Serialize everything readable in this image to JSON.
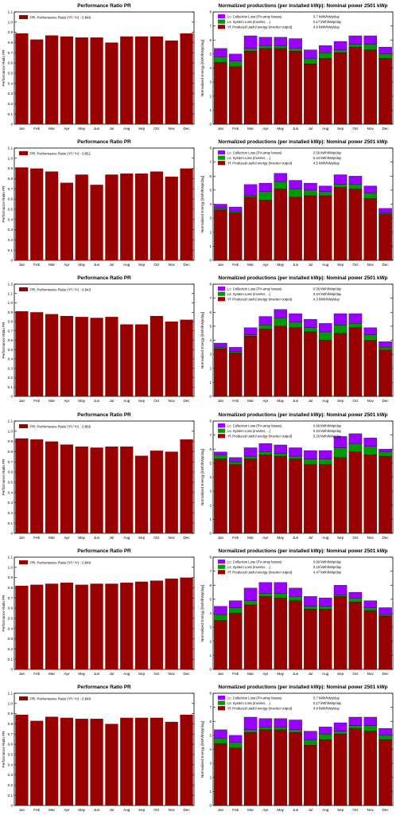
{
  "months": [
    "Jan",
    "Feb",
    "Mar",
    "Apr",
    "May",
    "Jun",
    "Jul",
    "Aug",
    "Sep",
    "Oct",
    "Nov",
    "Dec"
  ],
  "colors": {
    "pr_bar": "#990000",
    "yf": "#990000",
    "ls": "#009900",
    "lc": "#9900ff"
  },
  "chart_data": [
    {
      "type": "bar",
      "title": "Performance Ratio PR",
      "ylabel": "Performance Ratio PR",
      "legend": "PR: Performance Ratio (Yf / Yr) :  0.849",
      "ylim": [
        0,
        1.1
      ],
      "yticks": [
        "0",
        "0.1",
        "0.2",
        "0.3",
        "0.4",
        "0.5",
        "0.6",
        "0.7",
        "0.8",
        "0.9",
        "1.0",
        "1.1"
      ],
      "categories": [
        "Jan",
        "Feb",
        "Mar",
        "Apr",
        "May",
        "Jun",
        "Jul",
        "Aug",
        "Sep",
        "Oct",
        "Nov",
        "Dec"
      ],
      "values": [
        0.89,
        0.83,
        0.87,
        0.86,
        0.85,
        0.85,
        0.8,
        0.86,
        0.86,
        0.86,
        0.82,
        0.89
      ]
    },
    {
      "type": "bar",
      "stacked": true,
      "title": "Normalized productions (per installed kWp):  Nominal power 2501 kWp",
      "ylabel": "Normalized Energy [kWh/kWp/day]",
      "ylim": [
        0,
        8
      ],
      "yticks": [
        "0",
        "1",
        "2",
        "3",
        "4",
        "5",
        "6",
        "7",
        "8"
      ],
      "legend": [
        {
          "key": "lc",
          "label": "Lc: Collection Loss (PV-array losses)",
          "value": "0.7 kWh/kWp/day"
        },
        {
          "key": "ls",
          "label": "Ls: System Loss  (inverter, ...)",
          "value": "0.17 kWh/kWp/day"
        },
        {
          "key": "yf",
          "label": "Yf: Produced useful energy  (inverter output)",
          "value": "4.9 kWh/kWp/day"
        }
      ],
      "categories": [
        "Jan",
        "Feb",
        "Mar",
        "Apr",
        "May",
        "Jun",
        "Jul",
        "Aug",
        "Sep",
        "Oct",
        "Nov",
        "Dec"
      ],
      "series": [
        {
          "key": "yf",
          "name": "Yf",
          "values": [
            4.4,
            4.1,
            5.2,
            5.4,
            5.4,
            5.2,
            4.3,
            4.7,
            5.1,
            5.5,
            5.3,
            4.7
          ]
        },
        {
          "key": "ls",
          "name": "Ls",
          "values": [
            0.4,
            0.4,
            0.2,
            0.2,
            0.2,
            0.2,
            0.4,
            0.4,
            0.2,
            0.2,
            0.4,
            0.3
          ]
        },
        {
          "key": "lc",
          "name": "Lc",
          "values": [
            0.6,
            0.5,
            0.9,
            0.6,
            0.6,
            0.7,
            0.6,
            0.5,
            0.6,
            0.6,
            0.6,
            0.5
          ]
        }
      ]
    },
    {
      "type": "bar",
      "title": "Performance Ratio PR",
      "ylabel": "Performance Ratio PR",
      "legend": "PR: Performance Ratio (Yf / Yr) :  0.851",
      "ylim": [
        0,
        1.1
      ],
      "yticks": [
        "0",
        "0.1",
        "0.2",
        "0.3",
        "0.4",
        "0.5",
        "0.6",
        "0.7",
        "0.8",
        "0.9",
        "1.0",
        "1.1"
      ],
      "categories": [
        "Jan",
        "Feb",
        "Mar",
        "Apr",
        "May",
        "Jun",
        "Jul",
        "Aug",
        "Sep",
        "Oct",
        "Nov",
        "Dec"
      ],
      "values": [
        0.91,
        0.9,
        0.87,
        0.76,
        0.84,
        0.74,
        0.84,
        0.85,
        0.85,
        0.87,
        0.82,
        0.9
      ]
    },
    {
      "type": "bar",
      "stacked": true,
      "title": "Normalized productions (per installed kWp):  Nominal power 2501 kWp",
      "ylabel": "Normalized Energy [kWh/kWp/day]",
      "ylim": [
        0,
        8
      ],
      "yticks": [
        "0",
        "1",
        "2",
        "3",
        "4",
        "5",
        "6",
        "7",
        "8"
      ],
      "legend": [
        {
          "key": "lc",
          "label": "Lc: Collection Loss (PV-array losses)",
          "value": "0.59 kWh/kWp/day"
        },
        {
          "key": "ls",
          "label": "Ls: System Loss  (inverter, ...)",
          "value": "0.24 kWh/kWp/day"
        },
        {
          "key": "yf",
          "label": "Yf: Produced useful energy  (inverter output)",
          "value": "4.5 kWh/kWp/day"
        }
      ],
      "categories": [
        "Jan",
        "Feb",
        "Mar",
        "Apr",
        "May",
        "Jun",
        "Jul",
        "Aug",
        "Sep",
        "Oct",
        "Nov",
        "Dec"
      ],
      "series": [
        {
          "key": "yf",
          "name": "Yf",
          "values": [
            3.6,
            3.4,
            4.5,
            4.3,
            5.1,
            4.5,
            4.6,
            4.6,
            5.2,
            5.1,
            4.4,
            3.3
          ]
        },
        {
          "key": "ls",
          "name": "Ls",
          "values": [
            0.1,
            0.1,
            0.1,
            0.6,
            0.5,
            0.6,
            0.4,
            0.3,
            0.2,
            0.3,
            0.4,
            0.1
          ]
        },
        {
          "key": "lc",
          "name": "Lc",
          "values": [
            0.3,
            0.3,
            0.8,
            0.6,
            0.6,
            0.6,
            0.5,
            0.4,
            0.7,
            0.6,
            0.5,
            0.3
          ]
        }
      ]
    },
    {
      "type": "bar",
      "title": "Performance Ratio PR",
      "ylabel": "Performance Ratio PR",
      "legend": "PR: Performance Ratio (Yf / Yr) :  0.843",
      "ylim": [
        0,
        1.2
      ],
      "yticks": [
        "0",
        "0.1",
        "0.2",
        "0.3",
        "0.4",
        "0.5",
        "0.6",
        "0.7",
        "0.8",
        "0.9",
        "1.0",
        "1.1",
        "1.2"
      ],
      "categories": [
        "Jan",
        "Feb",
        "Mar",
        "Apr",
        "May",
        "Jun",
        "Jul",
        "Aug",
        "Sep",
        "Oct",
        "Nov",
        "Dec"
      ],
      "values": [
        0.91,
        0.9,
        0.88,
        0.86,
        0.85,
        0.84,
        0.85,
        0.77,
        0.77,
        0.86,
        0.8,
        0.82
      ]
    },
    {
      "type": "bar",
      "stacked": true,
      "title": "Normalized productions (per installed kWp):  Nominal power 2501 kWp",
      "ylabel": "Normalized Energy [kWh/kWp/day]",
      "ylim": [
        0,
        8
      ],
      "yticks": [
        "0",
        "1",
        "2",
        "3",
        "4",
        "5",
        "6",
        "7",
        "8"
      ],
      "legend": [
        {
          "key": "lc",
          "label": "Lc: Collection Loss (PV-array losses)",
          "value": "0.56 kWh/kWp/day"
        },
        {
          "key": "ls",
          "label": "Ls: System Loss  (inverter, ...)",
          "value": "0.24 kWh/kWp/day"
        },
        {
          "key": "yf",
          "label": "Yf: Produced useful energy  (inverter output)",
          "value": "4.3 kWh/kWp/day"
        }
      ],
      "categories": [
        "Jan",
        "Feb",
        "Mar",
        "Apr",
        "May",
        "Jun",
        "Jul",
        "Aug",
        "Sep",
        "Oct",
        "Nov",
        "Dec"
      ],
      "series": [
        {
          "key": "yf",
          "name": "Yf",
          "values": [
            3.4,
            3.1,
            4.3,
            4.8,
            5.0,
            4.9,
            4.6,
            4.0,
            4.5,
            4.9,
            4.0,
            3.3
          ]
        },
        {
          "key": "ls",
          "name": "Ls",
          "values": [
            0.1,
            0.1,
            0.1,
            0.3,
            0.6,
            0.4,
            0.3,
            0.6,
            0.6,
            0.3,
            0.4,
            0.2
          ]
        },
        {
          "key": "lc",
          "name": "Lc",
          "values": [
            0.3,
            0.3,
            0.5,
            0.6,
            0.6,
            0.6,
            0.6,
            0.6,
            0.8,
            0.7,
            0.5,
            0.4
          ]
        }
      ]
    },
    {
      "type": "bar",
      "title": "Performance Ratio PR",
      "ylabel": "Performance Ratio PR",
      "legend": "PR: Performance Ratio (Yf / Yr) :  0.856",
      "ylim": [
        0,
        1.1
      ],
      "yticks": [
        "0",
        "0.1",
        "0.2",
        "0.3",
        "0.4",
        "0.5",
        "0.6",
        "0.7",
        "0.8",
        "0.9",
        "1.0",
        "1.1"
      ],
      "categories": [
        "Jan",
        "Feb",
        "Mar",
        "Apr",
        "May",
        "Jun",
        "Jul",
        "Aug",
        "Sep",
        "Oct",
        "Nov",
        "Dec"
      ],
      "values": [
        0.93,
        0.92,
        0.9,
        0.87,
        0.85,
        0.84,
        0.85,
        0.85,
        0.76,
        0.81,
        0.8,
        0.92
      ]
    },
    {
      "type": "bar",
      "stacked": true,
      "title": "Normalized productions (per installed kWp):  Nominal power 2501 kWp",
      "ylabel": "Normalized Energy [kWh/kWp/day]",
      "ylim": [
        0,
        8
      ],
      "yticks": [
        "0",
        "1",
        "2",
        "3",
        "4",
        "5",
        "6",
        "7",
        "8"
      ],
      "legend": [
        {
          "key": "lc",
          "label": "Lc: Collection Loss (PV-array losses)",
          "value": "0.66 kWh/kWp/day"
        },
        {
          "key": "ls",
          "label": "Ls: System Loss  (inverter, ...)",
          "value": "0.23 kWh/kWp/day"
        },
        {
          "key": "yf",
          "label": "Yf: Produced useful energy  (inverter output)",
          "value": "5.26 kWh/kWp/day"
        }
      ],
      "categories": [
        "Jan",
        "Feb",
        "Mar",
        "Apr",
        "May",
        "Jun",
        "Jul",
        "Aug",
        "Sep",
        "Oct",
        "Nov",
        "Dec"
      ],
      "series": [
        {
          "key": "yf",
          "name": "Yf",
          "values": [
            5.3,
            4.9,
            5.3,
            5.6,
            5.5,
            5.3,
            4.9,
            4.9,
            5.4,
            5.8,
            5.6,
            5.5
          ]
        },
        {
          "key": "ls",
          "name": "Ls",
          "values": [
            0.3,
            0.2,
            0.2,
            0.2,
            0.2,
            0.2,
            0.4,
            0.4,
            0.7,
            0.6,
            0.6,
            0.3
          ]
        },
        {
          "key": "lc",
          "name": "Lc",
          "values": [
            0.2,
            0.3,
            0.6,
            0.6,
            0.6,
            0.6,
            0.6,
            0.6,
            0.8,
            0.7,
            0.6,
            0.2
          ]
        }
      ]
    },
    {
      "type": "bar",
      "title": "Performance Ratio PR",
      "ylabel": "Performance Ratio PR",
      "legend": "PR: Performance Ratio (Yf / Yr) :  0.849",
      "ylim": [
        0,
        1.1
      ],
      "yticks": [
        "0",
        "0.1",
        "0.2",
        "0.3",
        "0.4",
        "0.5",
        "0.6",
        "0.7",
        "0.8",
        "0.9",
        "1.0",
        "1.1"
      ],
      "categories": [
        "Jan",
        "Feb",
        "Mar",
        "Apr",
        "May",
        "Jun",
        "Jul",
        "Aug",
        "Sep",
        "Oct",
        "Nov",
        "Dec"
      ],
      "values": [
        0.82,
        0.83,
        0.84,
        0.85,
        0.83,
        0.84,
        0.84,
        0.85,
        0.86,
        0.87,
        0.89,
        0.9
      ]
    },
    {
      "type": "bar",
      "stacked": true,
      "title": "Normalized productions (per installed kWp):  Nominal power 2501 kWp",
      "ylabel": "Normalized Energy [kWh/kWp/day]",
      "ylim": [
        0,
        8
      ],
      "yticks": [
        "0",
        "1",
        "2",
        "3",
        "4",
        "5",
        "6",
        "7",
        "8"
      ],
      "legend": [
        {
          "key": "lc",
          "label": "Lc: Collection Loss (PV-array losses)",
          "value": "0.69 kWh/kWp/day"
        },
        {
          "key": "ls",
          "label": "Ls: System Loss  (inverter, ...)",
          "value": "0.15 kWh/kWp/day"
        },
        {
          "key": "yf",
          "label": "Yf: Produced useful energy  (inverter output)",
          "value": "4.47 kWh/kWp/day"
        }
      ],
      "categories": [
        "Jan",
        "Feb",
        "Mar",
        "Apr",
        "May",
        "Jun",
        "Jul",
        "Aug",
        "Sep",
        "Oct",
        "Nov",
        "Dec"
      ],
      "series": [
        {
          "key": "yf",
          "name": "Yf",
          "values": [
            3.5,
            4.0,
            4.6,
            5.2,
            5.1,
            4.9,
            4.3,
            4.3,
            5.2,
            4.8,
            4.2,
            3.8
          ]
        },
        {
          "key": "ls",
          "name": "Ls",
          "values": [
            0.4,
            0.4,
            0.3,
            0.2,
            0.3,
            0.3,
            0.2,
            0.2,
            0.1,
            0.3,
            0.2,
            0.1
          ]
        },
        {
          "key": "lc",
          "name": "Lc",
          "values": [
            0.6,
            0.5,
            0.9,
            0.8,
            0.8,
            0.6,
            0.7,
            0.6,
            0.7,
            0.4,
            0.5,
            0.5
          ]
        }
      ]
    },
    {
      "type": "bar",
      "title": "Performance Ratio PR",
      "ylabel": "Performance Ratio PR",
      "legend": "PR: Performance Ratio (Yf / Yr) :  0.849",
      "ylim": [
        0,
        1.1
      ],
      "yticks": [
        "0",
        "0.1",
        "0.2",
        "0.3",
        "0.4",
        "0.5",
        "0.6",
        "0.7",
        "0.8",
        "0.9",
        "1.0",
        "1.1"
      ],
      "categories": [
        "Jan",
        "Feb",
        "Mar",
        "Apr",
        "May",
        "Jun",
        "Jul",
        "Aug",
        "Sep",
        "Oct",
        "Nov",
        "Dec"
      ],
      "values": [
        0.89,
        0.83,
        0.87,
        0.86,
        0.85,
        0.85,
        0.8,
        0.86,
        0.86,
        0.86,
        0.82,
        0.89
      ]
    },
    {
      "type": "bar",
      "stacked": true,
      "title": "Normalized productions (per installed kWp):  Nominal power 2501 kWp",
      "ylabel": "Normalized Energy [kWh/kWp/day]",
      "ylim": [
        0,
        8
      ],
      "yticks": [
        "0",
        "1",
        "2",
        "3",
        "4",
        "5",
        "6",
        "7",
        "8"
      ],
      "legend": [
        {
          "key": "lc",
          "label": "Lc: Collection Loss (PV-array losses)",
          "value": "0.7 kWh/kWp/day"
        },
        {
          "key": "ls",
          "label": "Ls: System Loss  (inverter, ...)",
          "value": "0.17 kWh/kWp/day"
        },
        {
          "key": "yf",
          "label": "Yf: Produced useful energy  (inverter output)",
          "value": "4.9 kWh/kWp/day"
        }
      ],
      "categories": [
        "Jan",
        "Feb",
        "Mar",
        "Apr",
        "May",
        "Jun",
        "Jul",
        "Aug",
        "Sep",
        "Oct",
        "Nov",
        "Dec"
      ],
      "series": [
        {
          "key": "yf",
          "name": "Yf",
          "values": [
            4.4,
            4.1,
            5.2,
            5.4,
            5.4,
            5.2,
            4.3,
            4.7,
            5.1,
            5.5,
            5.3,
            4.7
          ]
        },
        {
          "key": "ls",
          "name": "Ls",
          "values": [
            0.4,
            0.4,
            0.2,
            0.2,
            0.2,
            0.2,
            0.4,
            0.4,
            0.2,
            0.2,
            0.4,
            0.3
          ]
        },
        {
          "key": "lc",
          "name": "Lc",
          "values": [
            0.6,
            0.5,
            0.9,
            0.6,
            0.6,
            0.7,
            0.6,
            0.5,
            0.6,
            0.6,
            0.6,
            0.5
          ]
        }
      ]
    }
  ]
}
